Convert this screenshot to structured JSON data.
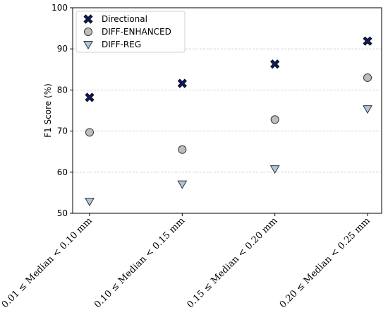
{
  "chart_data": {
    "type": "scatter",
    "categories": [
      "0.01 ≤ Median < 0.10 mm",
      "0.10 ≤ Median < 0.15 mm",
      "0.15 ≤ Median < 0.20 mm",
      "0.20 ≤ Median < 0.25 mm"
    ],
    "series": [
      {
        "name": "Directional",
        "marker": "x",
        "color": "#0f1a5e",
        "edge": "#000000",
        "values": [
          78.2,
          81.6,
          86.3,
          91.9
        ]
      },
      {
        "name": "DIFF-ENHANCED",
        "marker": "circle",
        "color": "#bdbdbd",
        "edge": "#333333",
        "values": [
          69.7,
          65.5,
          72.8,
          83.0
        ]
      },
      {
        "name": "DIFF-REG",
        "marker": "triangle-down",
        "color": "#b0c4de",
        "edge": "#333333",
        "values": [
          52.9,
          57.1,
          60.8,
          75.4
        ]
      }
    ],
    "ylabel": "F1 Score (%)",
    "xlabel": "",
    "title": "",
    "ylim": [
      50,
      100
    ],
    "yticks": [
      50,
      60,
      70,
      80,
      90,
      100
    ],
    "grid": "y-dashed",
    "legend_position": "top-left"
  }
}
